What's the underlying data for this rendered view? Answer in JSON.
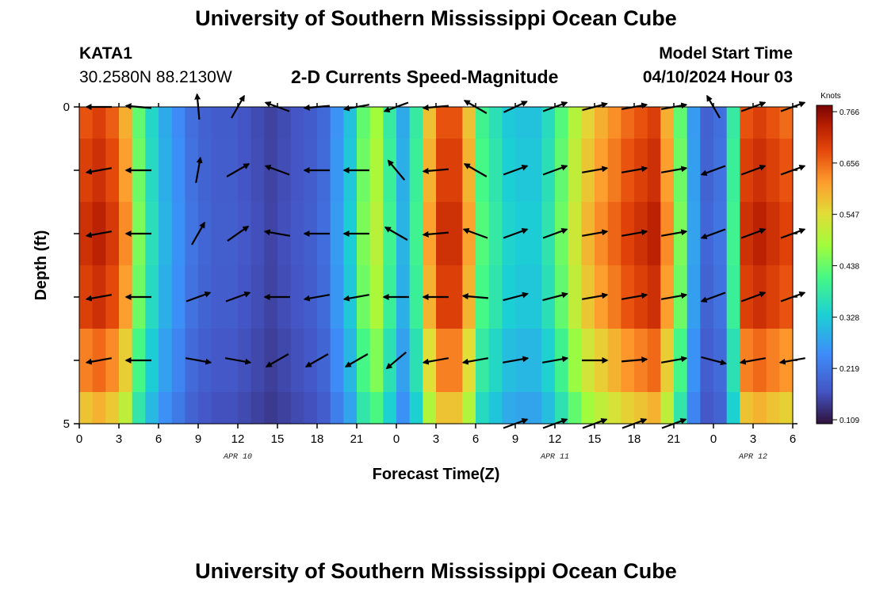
{
  "title": "University of Southern Mississippi Ocean Cube",
  "title_repeat": "University of Southern Mississippi Ocean Cube",
  "station": {
    "name": "KATA1",
    "coordinates": "30.2580N  88.2130W"
  },
  "subtitle": "2-D Currents Speed-Magnitude",
  "model_start": {
    "label": "Model Start Time",
    "value": "04/10/2024 Hour 03"
  },
  "colors": {
    "arrow": "#000000"
  },
  "chart_data": {
    "type": "heatmap",
    "title": "2-D Currents Speed-Magnitude",
    "xlabel": "Forecast Time(Z)",
    "ylabel": "Depth (ft)",
    "xlim": [
      0,
      54
    ],
    "ylim": [
      0,
      5
    ],
    "x_ticks": [
      {
        "hour": 0,
        "label": "0"
      },
      {
        "hour": 3,
        "label": "3"
      },
      {
        "hour": 6,
        "label": "6"
      },
      {
        "hour": 9,
        "label": "9"
      },
      {
        "hour": 12,
        "label": "12"
      },
      {
        "hour": 15,
        "label": "15"
      },
      {
        "hour": 18,
        "label": "18"
      },
      {
        "hour": 21,
        "label": "21"
      },
      {
        "hour": 24,
        "label": "0"
      },
      {
        "hour": 27,
        "label": "3"
      },
      {
        "hour": 30,
        "label": "6"
      },
      {
        "hour": 33,
        "label": "9"
      },
      {
        "hour": 36,
        "label": "12"
      },
      {
        "hour": 39,
        "label": "15"
      },
      {
        "hour": 42,
        "label": "18"
      },
      {
        "hour": 45,
        "label": "21"
      },
      {
        "hour": 48,
        "label": "0"
      },
      {
        "hour": 51,
        "label": "3"
      },
      {
        "hour": 54,
        "label": "6"
      }
    ],
    "date_labels": [
      {
        "hour": 12,
        "label": "APR 10"
      },
      {
        "hour": 36,
        "label": "APR 11"
      },
      {
        "hour": 51,
        "label": "APR 12"
      }
    ],
    "y_ticks": [
      {
        "depth": 0,
        "label": "0"
      },
      {
        "depth": 5,
        "label": "5"
      }
    ],
    "colorbar": {
      "unit": "Knots",
      "min": 0.109,
      "max": 0.766,
      "ticks": [
        "0.766",
        "0.656",
        "0.547",
        "0.438",
        "0.328",
        "0.219",
        "0.109"
      ]
    },
    "speed_by_hour": [
      0.7,
      0.72,
      0.69,
      0.62,
      0.45,
      0.36,
      0.3,
      0.26,
      0.22,
      0.2,
      0.19,
      0.19,
      0.18,
      0.17,
      0.16,
      0.17,
      0.18,
      0.19,
      0.21,
      0.27,
      0.33,
      0.45,
      0.5,
      0.4,
      0.3,
      0.4,
      0.6,
      0.7,
      0.7,
      0.6,
      0.42,
      0.38,
      0.34,
      0.33,
      0.33,
      0.37,
      0.44,
      0.52,
      0.58,
      0.62,
      0.65,
      0.68,
      0.7,
      0.72,
      0.62,
      0.45,
      0.28,
      0.2,
      0.22,
      0.4,
      0.7,
      0.72,
      0.7,
      0.68,
      0.64
    ],
    "depth_rows": [
      {
        "depth": 0.0,
        "factor": 0.94
      },
      {
        "depth": 1.0,
        "factor": 0.97
      },
      {
        "depth": 2.0,
        "factor": 1.0
      },
      {
        "depth": 3.0,
        "factor": 0.97
      },
      {
        "depth": 4.0,
        "factor": 0.88
      },
      {
        "depth": 4.75,
        "factor": 0.78
      }
    ],
    "vector_hours": [
      1.5,
      4.5,
      9,
      12,
      15,
      18,
      21,
      24,
      27,
      30,
      33,
      36,
      39,
      42,
      45,
      48,
      51,
      54
    ],
    "vector_depths": [
      0,
      1,
      2,
      3,
      4,
      5
    ],
    "vector_headings_deg": [
      [
        180,
        175,
        95,
        60,
        160,
        185,
        190,
        200,
        185,
        150,
        25,
        20,
        15,
        10,
        10,
        120,
        20,
        20
      ],
      [
        190,
        180,
        80,
        30,
        160,
        180,
        180,
        130,
        185,
        150,
        20,
        20,
        10,
        10,
        10,
        200,
        20,
        20
      ],
      [
        190,
        180,
        60,
        35,
        170,
        180,
        180,
        150,
        185,
        160,
        20,
        20,
        10,
        10,
        10,
        200,
        20,
        20
      ],
      [
        190,
        180,
        20,
        20,
        180,
        190,
        190,
        180,
        180,
        175,
        15,
        15,
        10,
        10,
        10,
        200,
        20,
        20
      ],
      [
        190,
        180,
        350,
        350,
        210,
        210,
        210,
        220,
        190,
        190,
        10,
        10,
        0,
        5,
        10,
        345,
        190,
        190
      ],
      [
        null,
        null,
        null,
        null,
        null,
        null,
        null,
        null,
        null,
        null,
        20,
        20,
        20,
        20,
        20,
        null,
        null,
        null
      ]
    ]
  }
}
